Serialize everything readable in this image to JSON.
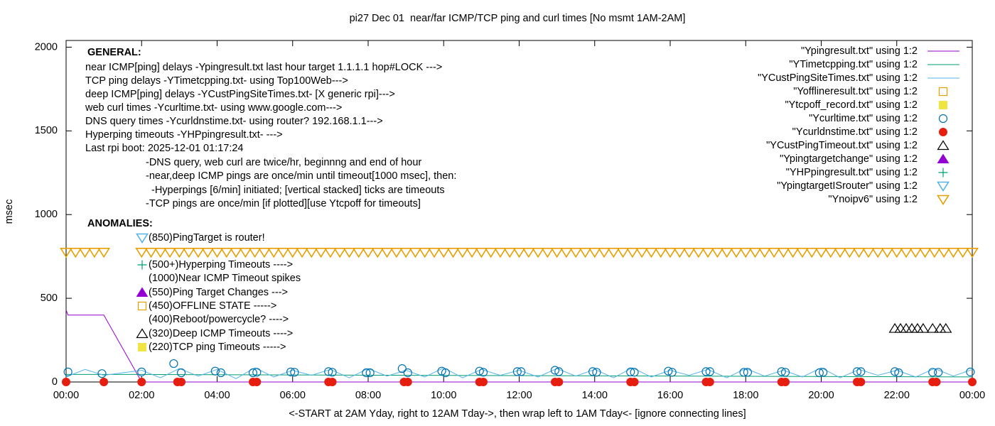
{
  "chart_data": {
    "type": "line",
    "title": "pi27 Dec 01  near/far ICMP/TCP ping and curl times [No msmt 1AM-2AM]",
    "xlabel": "<-START at 2AM Yday, right to 12AM Tday->, then wrap left to 1AM Tday<- [ignore connecting lines]",
    "ylabel": "msec",
    "xlim": [
      0,
      24
    ],
    "ylim": [
      0,
      2040
    ],
    "xticks": [
      {
        "value": 0,
        "label": "00:00"
      },
      {
        "value": 2,
        "label": "02:00"
      },
      {
        "value": 4,
        "label": "04:00"
      },
      {
        "value": 6,
        "label": "06:00"
      },
      {
        "value": 8,
        "label": "08:00"
      },
      {
        "value": 10,
        "label": "10:00"
      },
      {
        "value": 12,
        "label": "12:00"
      },
      {
        "value": 14,
        "label": "14:00"
      },
      {
        "value": 16,
        "label": "16:00"
      },
      {
        "value": 18,
        "label": "18:00"
      },
      {
        "value": 20,
        "label": "20:00"
      },
      {
        "value": 22,
        "label": "22:00"
      },
      {
        "value": 24,
        "label": "00:00"
      }
    ],
    "yticks": [
      0,
      500,
      1000,
      1500,
      2000
    ],
    "grid": false,
    "legend": "top-right",
    "notes": [
      "GENERAL:",
      "near ICMP[ping] delays -Ypingresult.txt last hour target 1.1.1.1 hop#LOCK --->",
      "TCP ping delays -YTimetcpping.txt- using Top100Web--->",
      "deep ICMP[ping] delays -YCustPingSiteTimes.txt- [X generic rpi]--->",
      "web curl times -Ycurltime.txt- using www.google.com--->",
      "DNS query times -Ycurldnstime.txt- using router? 192.168.1.1--->",
      "Hyperping timeouts -YHPpingresult.txt- --->",
      "Last rpi boot: 2025-12-01 01:17:24",
      "-DNS query, web curl are twice/hr, beginnng and end of hour",
      "-near,deep ICMP pings are once/min until timeout[1000 msec], then:",
      "-Hyperpings [6/min] initiated; [vertical stacked] ticks are timeouts",
      "-TCP pings are once/min [if plotted][use Ytcpoff for timeouts]",
      "ANOMALIES:",
      "(850)PingTarget is router!",
      "(500+)Hyperping Timeouts ---->",
      "(1000)Near ICMP Timeout spikes",
      "(550)Ping Target Changes --->",
      "(450)OFFLINE STATE ----->",
      "(400)Reboot/powercycle? ---->",
      "(320)Deep ICMP Timeouts ---->",
      "(220)TCP ping Timeouts ----->"
    ],
    "series": [
      {
        "name": "\"Ypingresult.txt\" using 1:2",
        "color": "#9400d3",
        "style": "line",
        "x": [
          0,
          0.05,
          1,
          2,
          24
        ],
        "values": [
          430,
          400,
          400,
          0,
          0
        ]
      },
      {
        "name": "\"YTimetcpping.txt\" using 1:2",
        "color": "#009e73",
        "style": "line",
        "x": [
          0,
          2,
          24
        ],
        "values": [
          45,
          45,
          30
        ]
      },
      {
        "name": "\"YCustPingSiteTimes.txt\" using 1:2",
        "color": "#56b4e9",
        "style": "line",
        "x": [
          0,
          0.5,
          1,
          2,
          2.5,
          3,
          3.5,
          4,
          4.5,
          5,
          5.5,
          6,
          6.5,
          7,
          7.5,
          8,
          8.5,
          9,
          9.5,
          10,
          10.5,
          11,
          11.5,
          12,
          12.5,
          13,
          13.5,
          14,
          14.5,
          15,
          15.5,
          16,
          16.5,
          17,
          17.5,
          18,
          18.5,
          19,
          19.5,
          20,
          20.5,
          21,
          21.5,
          22,
          22.5,
          23,
          23.5,
          24
        ],
        "values": [
          30,
          75,
          40,
          70,
          25,
          80,
          35,
          75,
          20,
          85,
          30,
          70,
          40,
          75,
          25,
          80,
          35,
          70,
          30,
          85,
          25,
          75,
          40,
          70,
          30,
          80,
          35,
          75,
          25,
          85,
          30,
          70,
          40,
          75,
          25,
          80,
          35,
          70,
          30,
          85,
          25,
          75,
          40,
          70,
          30,
          80,
          35,
          75
        ]
      },
      {
        "name": "\"Yofflineresult.txt\" using 1:2",
        "color": "#e69f00",
        "style": "points",
        "marker": "square",
        "x": [],
        "values": []
      },
      {
        "name": "\"Ytcpoff_record.txt\" using 1:2",
        "color": "#f0e442",
        "style": "points",
        "marker": "square-filled",
        "x": [],
        "values": []
      },
      {
        "name": "\"Ycurltime.txt\" using 1:2",
        "color": "#0072b2",
        "style": "points",
        "marker": "circle",
        "x": [
          0.05,
          0.95,
          2,
          2.85,
          3.05,
          3.95,
          4.1,
          4.95,
          5.05,
          5.95,
          6.05,
          6.95,
          7.05,
          7.95,
          8.05,
          8.9,
          9.05,
          9.95,
          10.05,
          10.95,
          11.05,
          11.95,
          12.05,
          12.95,
          13.05,
          13.95,
          14.05,
          14.95,
          15.05,
          15.95,
          16.05,
          16.95,
          17.05,
          17.95,
          18.05,
          18.95,
          19.05,
          19.95,
          20.05,
          20.95,
          21.05,
          21.95,
          22.05,
          22.95,
          23.1,
          23.95
        ],
        "values": [
          60,
          50,
          60,
          110,
          55,
          65,
          55,
          55,
          58,
          60,
          58,
          62,
          58,
          55,
          55,
          80,
          55,
          65,
          55,
          65,
          58,
          62,
          62,
          70,
          62,
          62,
          58,
          60,
          58,
          65,
          58,
          62,
          62,
          58,
          58,
          62,
          58,
          55,
          58,
          62,
          62,
          62,
          55,
          58,
          58,
          60
        ]
      },
      {
        "name": "\"Ycurldnstime.txt\" using 1:2",
        "color": "#e51e10",
        "style": "points",
        "marker": "circle-filled",
        "x": [
          0,
          1,
          2,
          2.95,
          3.05,
          4.95,
          5.05,
          6.95,
          7.05,
          8.95,
          9.05,
          10.95,
          11.05,
          12.95,
          13.05,
          14.95,
          15.05,
          16.95,
          17.05,
          18.95,
          19.05,
          20.95,
          21.05,
          22.95,
          23.05,
          24
        ],
        "values": [
          0,
          0,
          0,
          0,
          0,
          0,
          0,
          0,
          0,
          0,
          0,
          0,
          0,
          0,
          0,
          0,
          0,
          0,
          0,
          0,
          0,
          0,
          0,
          0,
          0,
          0
        ]
      },
      {
        "name": "\"YCustPingTimeout.txt\" using 1:2",
        "color": "#000000",
        "style": "points",
        "marker": "triangle",
        "x": [
          21.95,
          22.1,
          22.25,
          22.4,
          22.55,
          22.7,
          22.95,
          23.15,
          23.3
        ],
        "values": [
          320,
          320,
          320,
          320,
          320,
          320,
          320,
          320,
          320
        ]
      },
      {
        "name": "\"Ypingtargetchange\" using 1:2",
        "color": "#9400d3",
        "style": "points",
        "marker": "triangle-filled",
        "x": [],
        "values": []
      },
      {
        "name": "\"YHPpingresult.txt\" using 1:2",
        "color": "#009e73",
        "style": "points",
        "marker": "plus",
        "x": [],
        "values": []
      },
      {
        "name": "\"YpingtargetISrouter\" using 1:2",
        "color": "#56b4e9",
        "style": "points",
        "marker": "triangle-down",
        "x": [],
        "values": []
      },
      {
        "name": "\"Ynoipv6\" using 1:2",
        "color": "#e69f00",
        "style": "points",
        "marker": "triangle-down",
        "x": [
          0,
          0.25,
          0.5,
          0.75,
          1,
          2,
          2.25,
          2.5,
          2.75,
          3,
          3.25,
          3.5,
          3.75,
          4,
          4.25,
          4.5,
          4.75,
          5,
          5.25,
          5.5,
          5.75,
          6,
          6.25,
          6.5,
          6.75,
          7,
          7.25,
          7.5,
          7.75,
          8,
          8.25,
          8.5,
          8.75,
          9,
          9.25,
          9.5,
          9.75,
          10,
          10.25,
          10.5,
          10.75,
          11,
          11.25,
          11.5,
          11.75,
          12,
          12.25,
          12.5,
          12.75,
          13,
          13.25,
          13.5,
          13.75,
          14,
          14.25,
          14.5,
          14.75,
          15,
          15.25,
          15.5,
          15.75,
          16,
          16.25,
          16.5,
          16.75,
          17,
          17.25,
          17.5,
          17.75,
          18,
          18.25,
          18.5,
          18.75,
          19,
          19.25,
          19.5,
          19.75,
          20,
          20.25,
          20.5,
          20.75,
          21,
          21.25,
          21.5,
          21.75,
          22,
          22.25,
          22.5,
          22.75,
          23,
          23.25,
          23.5,
          23.75,
          24
        ],
        "values": [
          775,
          775,
          775,
          775,
          775,
          775,
          775,
          775,
          775,
          775,
          775,
          775,
          775,
          775,
          775,
          775,
          775,
          775,
          775,
          775,
          775,
          775,
          775,
          775,
          775,
          775,
          775,
          775,
          775,
          775,
          775,
          775,
          775,
          775,
          775,
          775,
          775,
          775,
          775,
          775,
          775,
          775,
          775,
          775,
          775,
          775,
          775,
          775,
          775,
          775,
          775,
          775,
          775,
          775,
          775,
          775,
          775,
          775,
          775,
          775,
          775,
          775,
          775,
          775,
          775,
          775,
          775,
          775,
          775,
          775,
          775,
          775,
          775,
          775,
          775,
          775,
          775,
          775,
          775,
          775,
          775,
          775,
          775,
          775,
          775,
          775,
          775,
          775,
          775,
          775,
          775,
          775,
          775,
          775
        ]
      }
    ]
  }
}
